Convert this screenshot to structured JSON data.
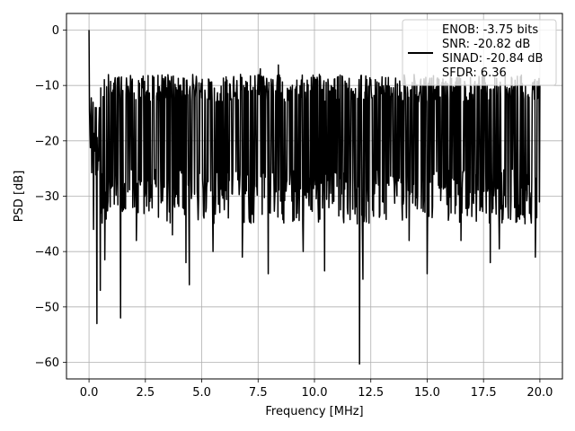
{
  "chart_data": {
    "type": "line",
    "xlabel": "Frequency [MHz]",
    "ylabel": "PSD [dB]",
    "xlim": [
      -1.0,
      21.0
    ],
    "ylim": [
      -63.0,
      3.0
    ],
    "xticks": [
      0.0,
      2.5,
      5.0,
      7.5,
      10.0,
      12.5,
      15.0,
      17.5,
      20.0
    ],
    "xtick_labels": [
      "0.0",
      "2.5",
      "5.0",
      "7.5",
      "10.0",
      "12.5",
      "15.0",
      "17.5",
      "20.0"
    ],
    "yticks": [
      0,
      -10,
      -20,
      -30,
      -40,
      -50,
      -60
    ],
    "ytick_labels": [
      "0",
      "−10",
      "−20",
      "−30",
      "−40",
      "−50",
      "−60"
    ],
    "grid": true,
    "legend_position": "top-right",
    "line_color": "#000000",
    "legend_lines": [
      "ENOB: -3.75 bits",
      "SNR: -20.82 dB",
      "SINAD: -20.84 dB",
      "SFDR: 6.36"
    ],
    "series": [
      {
        "x_start": 0.0,
        "x_end": 20.0,
        "points": 1001,
        "noise_floor_db": -20.0,
        "noise_range_db": [
          -35,
          -8
        ],
        "features": [
          {
            "x": 0.0,
            "y": 0.0
          },
          {
            "x": 0.04,
            "y": -18.0
          },
          {
            "x": 0.2,
            "y": -36.0
          },
          {
            "x": 0.35,
            "y": -53.0
          },
          {
            "x": 0.5,
            "y": -47.0
          },
          {
            "x": 0.7,
            "y": -41.5
          },
          {
            "x": 1.4,
            "y": -52.0
          },
          {
            "x": 2.1,
            "y": -38.0
          },
          {
            "x": 3.7,
            "y": -37.0
          },
          {
            "x": 4.3,
            "y": -42.0
          },
          {
            "x": 4.45,
            "y": -46.0
          },
          {
            "x": 5.5,
            "y": -40.0
          },
          {
            "x": 6.8,
            "y": -41.0
          },
          {
            "x": 7.6,
            "y": -7.0
          },
          {
            "x": 7.95,
            "y": -44.0
          },
          {
            "x": 8.4,
            "y": -6.3
          },
          {
            "x": 9.5,
            "y": -40.0
          },
          {
            "x": 10.45,
            "y": -43.5
          },
          {
            "x": 11.9,
            "y": -35.0
          },
          {
            "x": 12.0,
            "y": -60.3
          },
          {
            "x": 12.15,
            "y": -45.0
          },
          {
            "x": 14.2,
            "y": -38.0
          },
          {
            "x": 15.0,
            "y": -44.0
          },
          {
            "x": 16.5,
            "y": -38.0
          },
          {
            "x": 17.8,
            "y": -42.0
          },
          {
            "x": 18.2,
            "y": -39.5
          },
          {
            "x": 19.8,
            "y": -41.0
          }
        ]
      }
    ]
  }
}
